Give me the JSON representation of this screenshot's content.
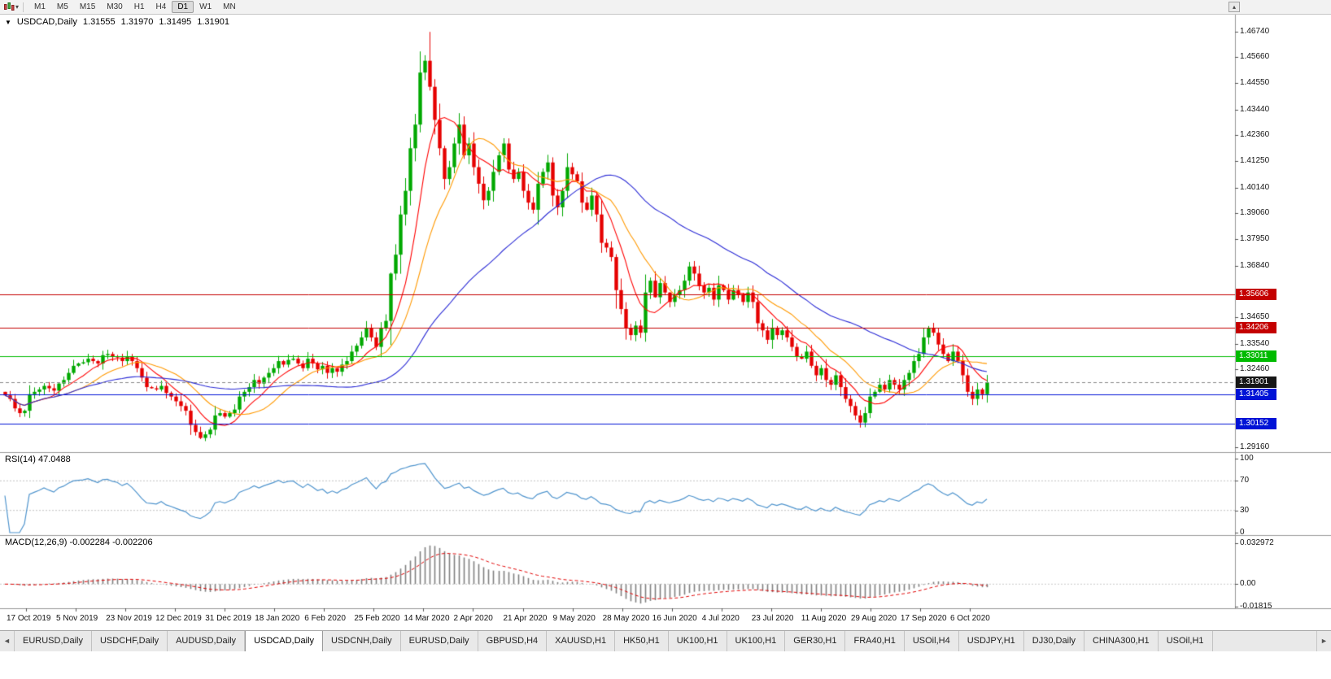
{
  "toolbar": {
    "timeframes": [
      "M1",
      "M5",
      "M15",
      "M30",
      "H1",
      "H4",
      "D1",
      "W1",
      "MN"
    ],
    "active_timeframe": "D1",
    "dropdown_caret": "▾",
    "scroll_up_glyph": "▴"
  },
  "header": {
    "marker": "▼",
    "symbol": "USDCAD,Daily",
    "open": "1.31555",
    "high": "1.31970",
    "low": "1.31495",
    "close": "1.31901"
  },
  "indicators": {
    "rsi_header": "RSI(14) 47.0488",
    "macd_header": "MACD(12,26,9) -0.002284 -0.002206"
  },
  "tabs": {
    "left_arrow": "◄",
    "right_arrow": "►",
    "active": 3,
    "items": [
      "EURUSD,Daily",
      "USDCHF,Daily",
      "AUDUSD,Daily",
      "USDCAD,Daily",
      "USDCNH,Daily",
      "EURUSD,Daily",
      "GBPUSD,H4",
      "XAUUSD,H1",
      "HK50,H1",
      "UK100,H1",
      "UK100,H1",
      "GER30,H1",
      "FRA40,H1",
      "USOil,H4",
      "USDJPY,H1",
      "DJ30,Daily",
      "CHINA300,H1",
      "USOil,H1"
    ]
  },
  "chart_data": {
    "type": "candlestick",
    "symbol": "USDCAD",
    "timeframe": "Daily",
    "current_ohlc": {
      "open": 1.31555,
      "high": 1.3197,
      "low": 1.31495,
      "close": 1.31901
    },
    "ylim": [
      1.2895,
      1.4745
    ],
    "price_ticks": [
      {
        "label": "1.46740",
        "value": 1.4674
      },
      {
        "label": "1.45660",
        "value": 1.4566
      },
      {
        "label": "1.44550",
        "value": 1.4455
      },
      {
        "label": "1.43440",
        "value": 1.4344
      },
      {
        "label": "1.42360",
        "value": 1.4236
      },
      {
        "label": "1.41250",
        "value": 1.4125
      },
      {
        "label": "1.40140",
        "value": 1.4014
      },
      {
        "label": "1.39060",
        "value": 1.3906
      },
      {
        "label": "1.37950",
        "value": 1.3795
      },
      {
        "label": "1.36840",
        "value": 1.3684
      },
      {
        "label": "1.34650",
        "value": 1.3465
      },
      {
        "label": "1.33540",
        "value": 1.3354
      },
      {
        "label": "1.32460",
        "value": 1.3246
      },
      {
        "label": "1.29160",
        "value": 1.2916
      }
    ],
    "date_ticks": [
      "17 Oct 2019",
      "5 Nov 2019",
      "23 Nov 2019",
      "12 Dec 2019",
      "31 Dec 2019",
      "18 Jan 2020",
      "6 Feb 2020",
      "25 Feb 2020",
      "14 Mar 2020",
      "2 Apr 2020",
      "21 Apr 2020",
      "9 May 2020",
      "28 May 2020",
      "16 Jun 2020",
      "4 Jul 2020",
      "23 Jul 2020",
      "11 Aug 2020",
      "29 Aug 2020",
      "17 Sep 2020",
      "6 Oct 2020"
    ],
    "horizontal_levels": [
      {
        "label": "1.35606",
        "value": 1.35606,
        "bg": "#C40000",
        "line": "#C40000",
        "style": "solid",
        "role": "resistance"
      },
      {
        "label": "1.34206",
        "value": 1.34206,
        "bg": "#C40000",
        "line": "#C40000",
        "style": "solid",
        "role": "resistance"
      },
      {
        "label": "1.33011",
        "value": 1.33011,
        "bg": "#00BB00",
        "line": "#00BB00",
        "style": "solid",
        "role": "level"
      },
      {
        "label": "1.31901",
        "value": 1.31901,
        "bg": "#161616",
        "line": "#8A8A8A",
        "style": "dash",
        "role": "current-price"
      },
      {
        "label": "1.31405",
        "value": 1.31405,
        "bg": "#0013D6",
        "line": "#0013D6",
        "style": "solid",
        "role": "support"
      },
      {
        "label": "1.30152",
        "value": 1.30152,
        "bg": "#0013D6",
        "line": "#0013D6",
        "style": "solid",
        "role": "support"
      }
    ],
    "first_open": 1.315,
    "high_extreme": 1.4672,
    "low_extreme": 1.295,
    "closes": [
      1.3135,
      1.312,
      1.308,
      1.306,
      1.307,
      1.314,
      1.315,
      1.316,
      1.3175,
      1.3165,
      1.3155,
      1.3185,
      1.32,
      1.323,
      1.326,
      1.327,
      1.3275,
      1.329,
      1.328,
      1.327,
      1.3305,
      1.331,
      1.33,
      1.3295,
      1.328,
      1.33,
      1.328,
      1.325,
      1.321,
      1.317,
      1.3165,
      1.316,
      1.3175,
      1.3145,
      1.313,
      1.311,
      1.309,
      1.307,
      1.301,
      1.298,
      1.2955,
      1.297,
      1.299,
      1.305,
      1.306,
      1.3045,
      1.306,
      1.3075,
      1.313,
      1.315,
      1.317,
      1.32,
      1.3185,
      1.321,
      1.323,
      1.325,
      1.328,
      1.3265,
      1.3285,
      1.329,
      1.327,
      1.325,
      1.329,
      1.327,
      1.3245,
      1.326,
      1.323,
      1.325,
      1.3235,
      1.3265,
      1.328,
      1.332,
      1.3345,
      1.338,
      1.342,
      1.338,
      1.334,
      1.342,
      1.345,
      1.365,
      1.373,
      1.39,
      1.4,
      1.418,
      1.428,
      1.45,
      1.455,
      1.444,
      1.43,
      1.418,
      1.405,
      1.41,
      1.42,
      1.428,
      1.415,
      1.42,
      1.41,
      1.403,
      1.396,
      1.4,
      1.408,
      1.415,
      1.42,
      1.409,
      1.405,
      1.408,
      1.4,
      1.395,
      1.392,
      1.403,
      1.408,
      1.412,
      1.398,
      1.393,
      1.4,
      1.41,
      1.407,
      1.404,
      1.395,
      1.392,
      1.398,
      1.39,
      1.378,
      1.376,
      1.372,
      1.358,
      1.35,
      1.342,
      1.339,
      1.343,
      1.34,
      1.357,
      1.362,
      1.355,
      1.361,
      1.357,
      1.353,
      1.356,
      1.358,
      1.362,
      1.368,
      1.365,
      1.36,
      1.357,
      1.359,
      1.354,
      1.36,
      1.358,
      1.354,
      1.358,
      1.356,
      1.353,
      1.357,
      1.353,
      1.344,
      1.341,
      1.337,
      1.342,
      1.339,
      1.341,
      1.338,
      1.334,
      1.33,
      1.329,
      1.332,
      1.326,
      1.322,
      1.325,
      1.32,
      1.318,
      1.322,
      1.317,
      1.312,
      1.309,
      1.305,
      1.302,
      1.306,
      1.313,
      1.315,
      1.318,
      1.316,
      1.32,
      1.318,
      1.316,
      1.32,
      1.323,
      1.328,
      1.331,
      1.338,
      1.342,
      1.34,
      1.335,
      1.331,
      1.328,
      1.332,
      1.328,
      1.322,
      1.315,
      1.312,
      1.316,
      1.314,
      1.319
    ],
    "candle_colors": {
      "bull": "#00A800",
      "bear": "#E60000"
    },
    "moving_averages": [
      {
        "name": "fast-ma",
        "period": 8,
        "color": "#FF0000"
      },
      {
        "name": "medium-ma",
        "period": 16,
        "color": "#FF9900"
      },
      {
        "name": "slow-ma",
        "period": 45,
        "color": "#2B2BD5"
      }
    ],
    "rsi": {
      "period": 14,
      "current": 47.0488,
      "line_color": "#4F94CD",
      "overbought": 70,
      "oversold": 30,
      "levels": [
        {
          "label": "100",
          "value": 100
        },
        {
          "label": "70",
          "value": 70
        },
        {
          "label": "30",
          "value": 30
        },
        {
          "label": "0",
          "value": 0
        }
      ]
    },
    "macd": {
      "fast": 12,
      "slow": 26,
      "signal_period": 9,
      "current_macd": -0.002284,
      "current_signal": -0.002206,
      "hist_color": "#808080",
      "signal_color": "#E00000",
      "axis": [
        {
          "label": "0.032972",
          "value": 0.032972
        },
        {
          "label": "0.00",
          "value": 0
        },
        {
          "label": "-0.01815",
          "value": -0.01815
        }
      ]
    }
  }
}
